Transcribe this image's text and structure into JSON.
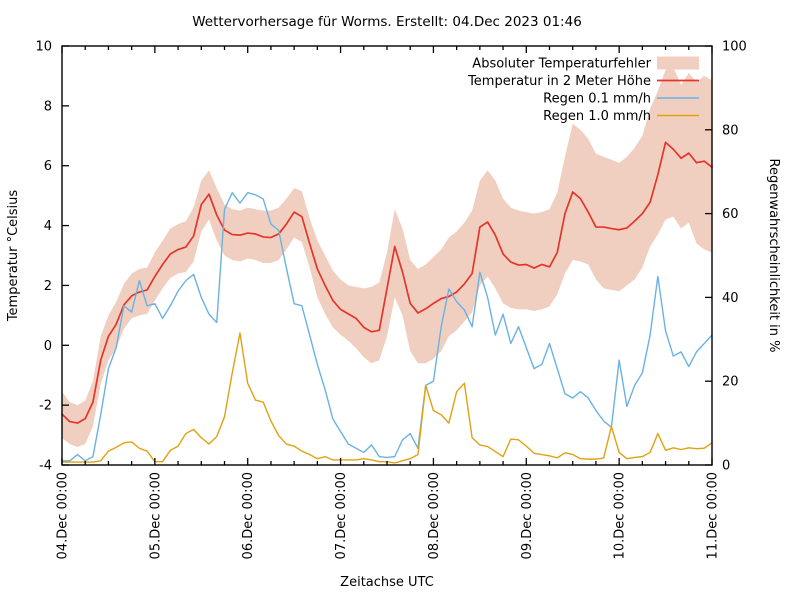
{
  "title": "Wettervorhersage für Worms. Erstellt: 04.Dec 2023 01:46",
  "axes": {
    "x_label": "Zeitachse UTC",
    "y_left_label": "Temperatur °Celsius",
    "y_right_label": "Regenwahrscheinlichkeit in %",
    "x_tick_labels": [
      "04.Dec 00:00",
      "05.Dec 00:00",
      "06.Dec 00:00",
      "07.Dec 00:00",
      "08.Dec 00:00",
      "09.Dec 00:00",
      "10.Dec 00:00",
      "11.Dec 00:00"
    ],
    "y_left_tick_labels": [
      "-4",
      "-2",
      "0",
      "2",
      "4",
      "6",
      "8",
      "10"
    ],
    "y_right_tick_labels": [
      "0",
      "20",
      "40",
      "60",
      "80",
      "100"
    ]
  },
  "legend": {
    "items": [
      {
        "label": "Absoluter Temperaturfehler",
        "swatch": "band",
        "color": "#f1cfc0"
      },
      {
        "label": "Temperatur in 2 Meter Höhe",
        "swatch": "line",
        "color": "#e4352a"
      },
      {
        "label": "Regen 0.1 mm/h",
        "swatch": "line",
        "color": "#6ab2e3"
      },
      {
        "label": "Regen 1.0 mm/h",
        "swatch": "line",
        "color": "#e0a212"
      }
    ]
  },
  "chart_data": {
    "type": "line",
    "title": "Wettervorhersage für Worms. Erstellt: 04.Dec 2023 01:46",
    "xlabel": "Zeitachse UTC",
    "ylabel_left": "Temperatur °Celsius",
    "ylabel_right": "Regenwahrscheinlichkeit in %",
    "x_start_label": "04.Dec 00:00",
    "x_end_label": "11.Dec 00:00",
    "x_range_hours": [
      0,
      168
    ],
    "x_step_hours": 2,
    "x_tick_interval_hours": 24,
    "x_minor_tick_interval_hours": 6,
    "ylim_left": [
      -4,
      10
    ],
    "ylim_right": [
      0,
      100
    ],
    "grid": false,
    "legend_position": "top-right-inside",
    "series": [
      {
        "name": "Absoluter Temperaturfehler",
        "axis": "left",
        "style": "band",
        "color": "#f1cfc0",
        "upper": [
          -1.55,
          -1.9,
          -2.0,
          -1.85,
          -1.2,
          0.3,
          1.0,
          1.45,
          2.05,
          2.4,
          2.55,
          2.6,
          3.1,
          3.5,
          3.9,
          4.05,
          4.15,
          4.6,
          5.5,
          5.85,
          5.25,
          4.7,
          4.55,
          4.5,
          4.6,
          4.55,
          4.5,
          4.5,
          4.6,
          4.9,
          5.25,
          5.15,
          4.25,
          3.5,
          3.0,
          2.5,
          2.2,
          2.0,
          1.95,
          1.9,
          1.95,
          2.1,
          3.1,
          4.55,
          3.9,
          2.85,
          2.55,
          2.7,
          2.95,
          3.2,
          3.6,
          3.8,
          4.1,
          4.5,
          5.5,
          5.85,
          5.5,
          4.9,
          4.6,
          4.5,
          4.45,
          4.4,
          4.45,
          4.55,
          5.1,
          6.3,
          7.4,
          7.2,
          6.9,
          6.4,
          6.3,
          6.2,
          6.1,
          6.3,
          6.6,
          7.0,
          7.9,
          8.5,
          9.2,
          9.3,
          8.7,
          9.1,
          8.8,
          9.0,
          8.85
        ],
        "lower": [
          -3.1,
          -3.3,
          -3.4,
          -3.3,
          -2.7,
          -1.3,
          -0.5,
          -0.1,
          0.55,
          0.9,
          1.0,
          1.05,
          1.5,
          1.9,
          2.25,
          2.4,
          2.45,
          2.8,
          3.8,
          4.2,
          3.5,
          3.0,
          2.85,
          2.8,
          2.9,
          2.85,
          2.75,
          2.75,
          2.85,
          3.2,
          3.6,
          3.45,
          2.6,
          1.6,
          1.05,
          0.6,
          0.35,
          0.15,
          -0.1,
          -0.4,
          -0.6,
          -0.5,
          0.3,
          1.6,
          1.0,
          -0.2,
          -0.6,
          -0.6,
          -0.45,
          -0.2,
          0.3,
          0.5,
          0.8,
          1.1,
          2.0,
          2.3,
          1.9,
          1.4,
          1.25,
          1.2,
          1.2,
          1.15,
          1.2,
          1.3,
          1.7,
          2.4,
          2.85,
          2.8,
          2.7,
          2.2,
          1.9,
          1.85,
          1.8,
          2.0,
          2.2,
          2.6,
          3.3,
          3.7,
          4.2,
          4.3,
          3.9,
          4.1,
          3.4,
          3.2,
          3.1
        ]
      },
      {
        "name": "Temperatur in 2 Meter Höhe",
        "axis": "left",
        "style": "line",
        "color": "#e4352a",
        "values": [
          -2.3,
          -2.55,
          -2.6,
          -2.45,
          -1.9,
          -0.5,
          0.3,
          0.7,
          1.35,
          1.65,
          1.78,
          1.85,
          2.3,
          2.7,
          3.05,
          3.2,
          3.28,
          3.65,
          4.7,
          5.05,
          4.35,
          3.85,
          3.7,
          3.68,
          3.75,
          3.72,
          3.62,
          3.6,
          3.72,
          4.05,
          4.45,
          4.3,
          3.4,
          2.55,
          2.0,
          1.5,
          1.2,
          1.05,
          0.9,
          0.6,
          0.45,
          0.5,
          1.9,
          3.3,
          2.45,
          1.4,
          1.08,
          1.22,
          1.4,
          1.56,
          1.63,
          1.78,
          2.05,
          2.4,
          3.95,
          4.12,
          3.68,
          3.05,
          2.78,
          2.68,
          2.7,
          2.58,
          2.7,
          2.62,
          3.1,
          4.4,
          5.12,
          4.9,
          4.45,
          3.95,
          3.95,
          3.9,
          3.86,
          3.92,
          4.15,
          4.4,
          4.78,
          5.7,
          6.78,
          6.55,
          6.25,
          6.42,
          6.1,
          6.15,
          5.95
        ]
      },
      {
        "name": "Regen 0.1 mm/h",
        "axis": "right",
        "style": "line",
        "color": "#6ab2e3",
        "values": [
          1,
          1,
          2.5,
          1,
          2,
          12,
          23,
          28,
          38,
          36.5,
          44,
          38,
          38.5,
          35,
          38,
          41.5,
          44,
          45.5,
          40,
          36,
          34,
          61,
          65,
          62.5,
          65,
          64.5,
          63.5,
          57.5,
          56,
          47,
          38.5,
          38,
          31,
          24,
          18,
          11,
          8,
          5,
          4,
          3,
          4.8,
          2,
          1.8,
          2,
          6,
          7.5,
          4,
          19,
          20,
          33,
          42,
          39,
          37,
          33,
          46,
          40,
          31,
          36,
          29,
          33,
          28,
          23,
          24,
          29,
          23,
          17,
          16,
          17.5,
          16,
          13,
          10.5,
          9,
          25,
          14,
          19,
          22,
          31,
          45,
          32,
          26,
          27,
          23.5,
          27,
          29,
          31
        ]
      },
      {
        "name": "Regen 1.0 mm/h",
        "axis": "right",
        "style": "line",
        "color": "#e0a212",
        "values": [
          0.7,
          0.7,
          0.7,
          0.7,
          0.7,
          1,
          3.3,
          4.2,
          5.3,
          5.5,
          4,
          3.3,
          0.8,
          0.8,
          3.5,
          4.5,
          7.5,
          8.5,
          6.5,
          5,
          6.8,
          11.5,
          22,
          31.5,
          19.5,
          15.5,
          15,
          10.5,
          7,
          5,
          4.5,
          3.3,
          2.5,
          1.5,
          2,
          1.2,
          1.2,
          1.2,
          1.2,
          1.5,
          1.2,
          0.8,
          0.8,
          0.5,
          1,
          1.5,
          2.5,
          19,
          13,
          12,
          10,
          17.5,
          19.5,
          6.5,
          4.8,
          4.4,
          3.2,
          2,
          6.2,
          6,
          4.5,
          2.8,
          2.5,
          2.2,
          1.7,
          2.9,
          2.5,
          1.5,
          1.4,
          1.4,
          1.7,
          9.2,
          3,
          1.5,
          1.8,
          2,
          3,
          7.5,
          3.5,
          4.1,
          3.7,
          4.1,
          3.9,
          4,
          5.3
        ]
      }
    ]
  }
}
